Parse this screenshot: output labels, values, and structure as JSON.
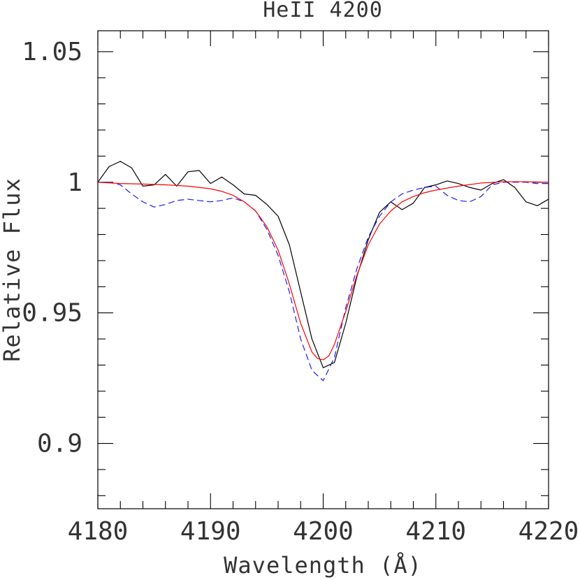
{
  "chart_data": {
    "type": "line",
    "title": "HeII 4200",
    "xlabel": "Wavelength (Å)",
    "ylabel": "Relative Flux",
    "xlim": [
      4180,
      4220
    ],
    "ylim": [
      0.875,
      1.058
    ],
    "xticks": [
      4180,
      4190,
      4200,
      4210,
      4220
    ],
    "xtick_labels": [
      "4180",
      "4190",
      "4200",
      "4210",
      "4220"
    ],
    "yticks": [
      0.9,
      0.95,
      1.0,
      1.05
    ],
    "ytick_labels": [
      "0.9",
      "0.95",
      "1",
      "1.05"
    ],
    "grid": false,
    "legend": "none",
    "series": [
      {
        "style": "solid",
        "color": "#000000",
        "x": [
          4180,
          4181,
          4182,
          4183,
          4184,
          4185,
          4186,
          4187,
          4188,
          4189,
          4190,
          4191,
          4192,
          4193,
          4194,
          4195,
          4196,
          4197,
          4198,
          4199,
          4200,
          4201,
          4202,
          4203,
          4204,
          4205,
          4206,
          4207,
          4208,
          4209,
          4210,
          4211,
          4212,
          4213,
          4214,
          4215,
          4216,
          4217,
          4218,
          4219,
          4220
        ],
        "y": [
          1.0,
          1.006,
          1.008,
          1.0055,
          0.9985,
          0.999,
          1.003,
          0.9985,
          1.004,
          1.0045,
          0.9995,
          1.002,
          0.999,
          0.9955,
          0.995,
          0.9915,
          0.987,
          0.976,
          0.958,
          0.94,
          0.929,
          0.931,
          0.946,
          0.964,
          0.978,
          0.9885,
          0.9925,
          0.9895,
          0.992,
          0.998,
          0.999,
          1.0005,
          0.9995,
          0.998,
          0.997,
          0.9995,
          1.001,
          0.998,
          0.9925,
          0.991,
          0.9935
        ]
      },
      {
        "style": "dashed",
        "color": "#1a1aff",
        "x": [
          4180,
          4181,
          4182,
          4183,
          4184,
          4185,
          4186,
          4187,
          4188,
          4189,
          4190,
          4191,
          4192,
          4193,
          4194,
          4195,
          4196,
          4197,
          4198,
          4199,
          4200,
          4201,
          4202,
          4203,
          4204,
          4205,
          4206,
          4207,
          4208,
          4209,
          4210,
          4211,
          4212,
          4213,
          4214,
          4215,
          4216,
          4217,
          4218,
          4219,
          4220
        ],
        "y": [
          1.0,
          1.0,
          0.999,
          0.9955,
          0.9925,
          0.9905,
          0.9915,
          0.993,
          0.9935,
          0.993,
          0.9925,
          0.993,
          0.994,
          0.9925,
          0.989,
          0.982,
          0.972,
          0.958,
          0.94,
          0.928,
          0.924,
          0.933,
          0.952,
          0.967,
          0.979,
          0.987,
          0.9925,
          0.9955,
          0.997,
          0.998,
          0.9985,
          0.995,
          0.993,
          0.9925,
          0.9945,
          0.999,
          1.0,
          1.0,
          1.0,
          0.9995,
          0.9995
        ]
      },
      {
        "style": "solid",
        "color": "#ff0000",
        "x": [
          4180,
          4182,
          4184,
          4186,
          4188,
          4190,
          4191,
          4192,
          4193,
          4194,
          4195,
          4196,
          4197,
          4198,
          4199,
          4199.5,
          4200,
          4200.5,
          4201,
          4202,
          4203,
          4204,
          4205,
          4206,
          4207,
          4208,
          4209,
          4210,
          4212,
          4214,
          4216,
          4218,
          4220
        ],
        "y": [
          1.0,
          0.9995,
          0.9993,
          0.999,
          0.9985,
          0.9975,
          0.9965,
          0.995,
          0.9925,
          0.989,
          0.983,
          0.974,
          0.961,
          0.946,
          0.935,
          0.9325,
          0.932,
          0.9335,
          0.938,
          0.9505,
          0.9645,
          0.976,
          0.984,
          0.989,
          0.9925,
          0.9945,
          0.996,
          0.997,
          0.9985,
          0.9997,
          1.0002,
          1.0002,
          1.0
        ]
      }
    ]
  }
}
